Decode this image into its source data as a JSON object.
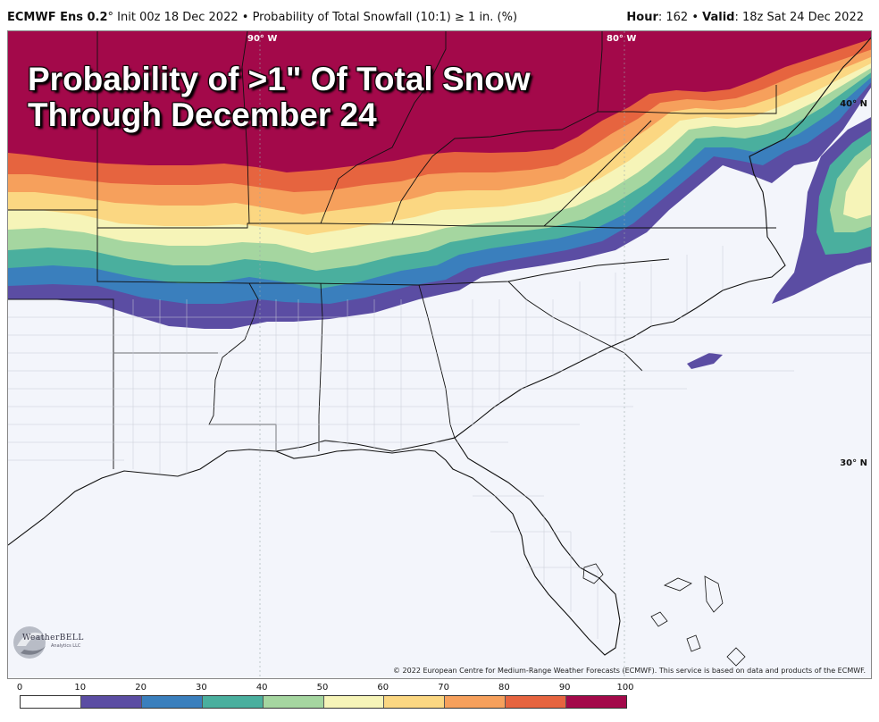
{
  "header": {
    "model": "ECMWF Ens 0.2",
    "degree": "°",
    "init": " Init 00z 18 Dec 2022",
    "separator": " • ",
    "product": "Probability of Total Snowfall (10:1)  ≥  1 in. (%)",
    "hour_label": "Hour",
    "hour_value": ": 162 • ",
    "valid_label": "Valid",
    "valid_value": ": 18z Sat 24 Dec 2022"
  },
  "overlay": {
    "line1": "Probability of >1\" Of Total Snow",
    "line2": "Through December 24"
  },
  "gridlines": {
    "lat_40": "40° N",
    "lat_30": "30° N",
    "lon_90": "90° W",
    "lon_80": "80° W"
  },
  "logo": {
    "name": "WeatherBELL",
    "sub": "Analytics LLC"
  },
  "credit": "© 2022 European Centre for Medium-Range Weather Forecasts (ECMWF). This service is based on data and products of the ECMWF.",
  "legend": {
    "ticks": [
      "0",
      "10",
      "20",
      "30",
      "40",
      "50",
      "60",
      "70",
      "80",
      "90",
      "100"
    ],
    "colors": [
      "#ffffff",
      "#5b4da3",
      "#3a7fbd",
      "#4aaf9e",
      "#a5d6a0",
      "#f6f4b8",
      "#fbd782",
      "#f6a05c",
      "#e6643f",
      "#a3094a"
    ]
  }
}
